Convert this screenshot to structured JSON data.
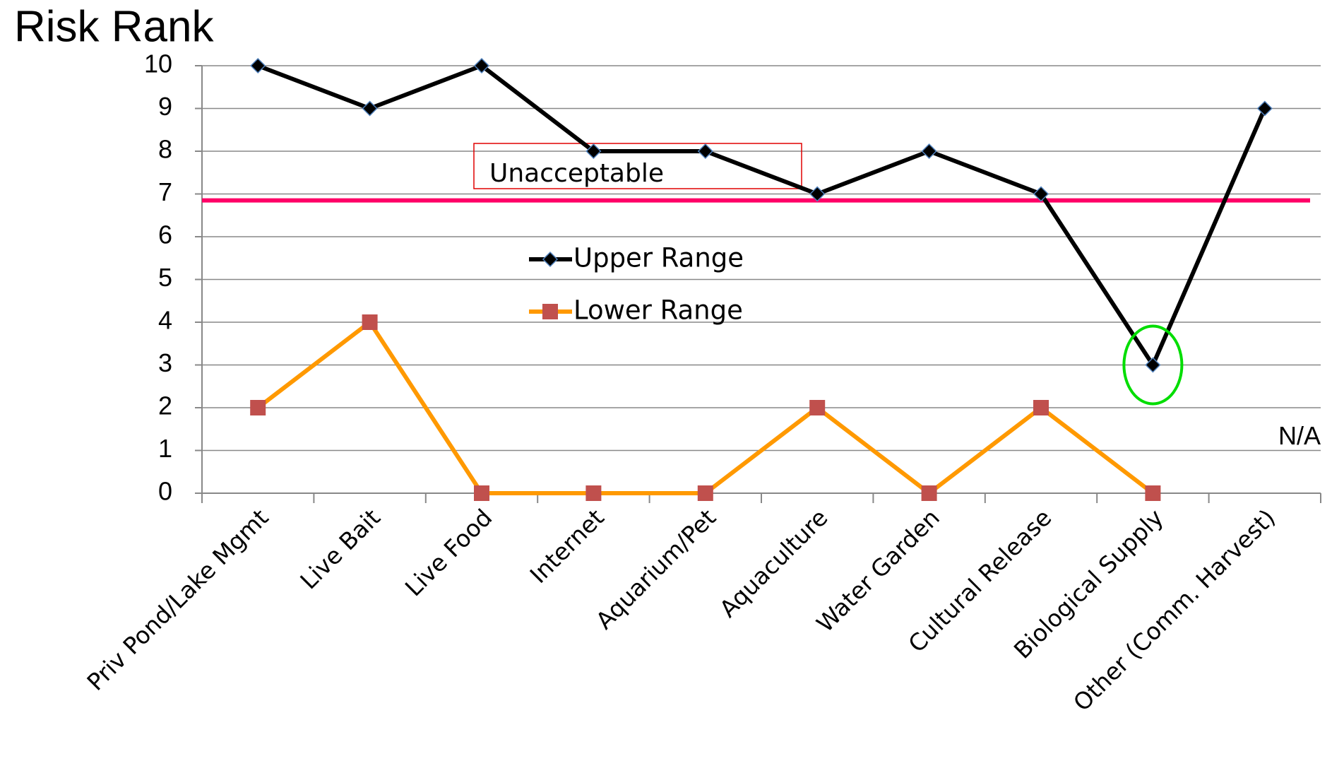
{
  "chart_data": {
    "type": "line",
    "title": "Risk Rank",
    "categories": [
      "Priv Pond/Lake Mgmt",
      "Live Bait",
      "Live Food",
      "Internet",
      "Aquarium/Pet",
      "Aquaculture",
      "Water Garden",
      "Cultural Release",
      "Biological Supply",
      "Other (Comm. Harvest)"
    ],
    "series": [
      {
        "name": "Upper Range",
        "color": "#000000",
        "marker": "diamond",
        "values": [
          10,
          9,
          10,
          8,
          8,
          7,
          8,
          7,
          3,
          9
        ]
      },
      {
        "name": "Lower Range",
        "color": "#ff9900",
        "marker": "square",
        "values": [
          2,
          4,
          0,
          0,
          0,
          2,
          0,
          2,
          0,
          null
        ]
      }
    ],
    "ylim": [
      0,
      10
    ],
    "yticks": [
      0,
      1,
      2,
      3,
      4,
      5,
      6,
      7,
      8,
      9,
      10
    ],
    "grid": true,
    "threshold": {
      "value": 6.85,
      "color": "#ff0066",
      "label": "Unacceptable"
    },
    "annotations": [
      {
        "text": "N/A",
        "category": 9
      }
    ],
    "highlight": {
      "series": 0,
      "index": 8,
      "color": "#00dd00"
    }
  }
}
